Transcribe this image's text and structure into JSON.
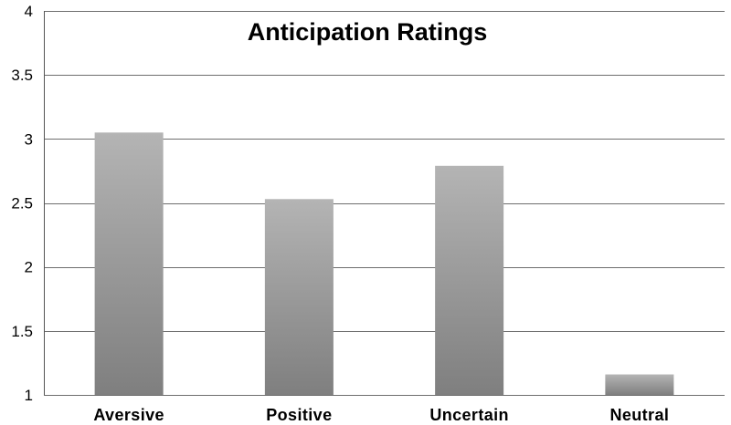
{
  "chart_data": {
    "type": "bar",
    "title": "Anticipation Ratings",
    "xlabel": "",
    "ylabel": "",
    "categories": [
      "Aversive",
      "Positive",
      "Uncertain",
      "Neutral"
    ],
    "values": [
      3.05,
      2.53,
      2.79,
      1.16
    ],
    "ylim": [
      1,
      4
    ],
    "yticks": [
      1,
      1.5,
      2,
      2.5,
      3,
      3.5,
      4
    ],
    "ytick_labels": [
      "1",
      "1.5",
      "2",
      "2.5",
      "3",
      "3.5",
      "4"
    ],
    "grid": true,
    "legend": "none",
    "bar_color_top": "#b4b4b4",
    "bar_color_bottom": "#7f7f7f"
  }
}
